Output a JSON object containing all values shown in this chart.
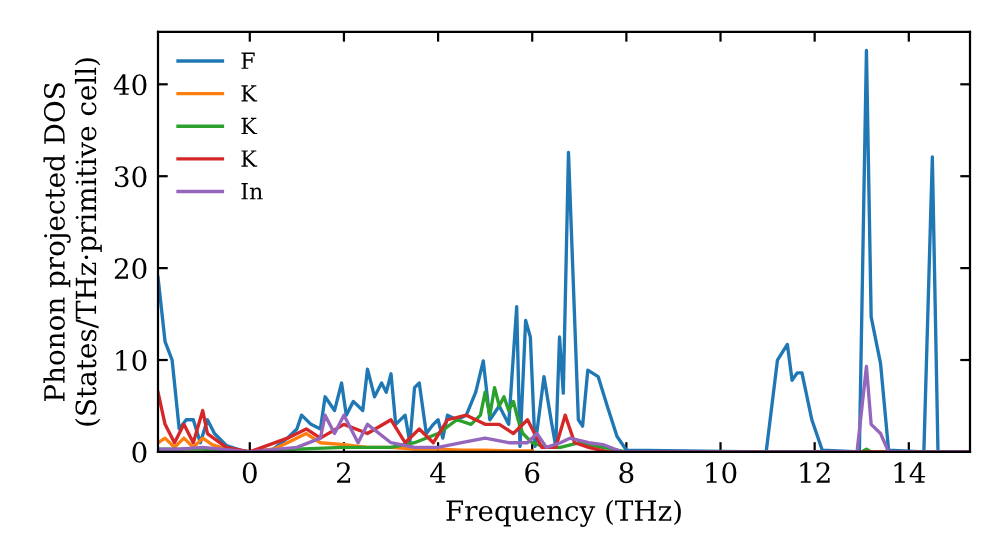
{
  "chart_data": {
    "type": "line",
    "xlabel": "Frequency (THz)",
    "ylabel": "Phonon projected DOS\n(States/THz·primitive cell)",
    "xlim": [
      -1.95,
      15.3
    ],
    "ylim": [
      0,
      45.7
    ],
    "xticks": [
      0,
      2,
      4,
      6,
      8,
      10,
      12,
      14
    ],
    "yticks": [
      0,
      10,
      20,
      30,
      40
    ],
    "legend": "top left",
    "grid": false,
    "marker": "none",
    "line_style": "solid",
    "series": [
      {
        "name": "F",
        "color": "#1f77b4",
        "x": [
          -1.95,
          -1.8,
          -1.65,
          -1.5,
          -1.35,
          -1.2,
          -1.05,
          -0.9,
          -0.75,
          -0.5,
          -0.2,
          0,
          0.5,
          0.8,
          1.0,
          1.1,
          1.3,
          1.5,
          1.6,
          1.8,
          1.95,
          2.05,
          2.2,
          2.4,
          2.5,
          2.65,
          2.8,
          2.9,
          3.0,
          3.1,
          3.3,
          3.4,
          3.5,
          3.6,
          3.75,
          3.9,
          4.0,
          4.1,
          4.2,
          4.4,
          4.6,
          4.8,
          4.96,
          5.1,
          5.3,
          5.5,
          5.67,
          5.74,
          5.86,
          5.96,
          6.06,
          6.25,
          6.4,
          6.5,
          6.58,
          6.66,
          6.77,
          6.98,
          7.07,
          7.18,
          7.4,
          7.6,
          7.8,
          8.0,
          10.97,
          11.21,
          11.42,
          11.52,
          11.63,
          11.73,
          11.94,
          12.16,
          12.95,
          13.1,
          13.2,
          13.4,
          13.57,
          14.32,
          14.5,
          14.62,
          15.3
        ],
        "values": [
          19,
          12,
          10,
          2.5,
          3.5,
          3.5,
          1,
          3.5,
          2,
          0.7,
          0.2,
          0,
          0.3,
          1.5,
          2.5,
          4,
          3,
          2.5,
          6,
          4.5,
          7.5,
          4,
          5.5,
          4.5,
          9,
          6,
          7.5,
          6.5,
          8.5,
          3,
          4,
          1,
          7,
          7.5,
          2,
          3,
          3.5,
          1.5,
          4,
          3.5,
          4,
          6.5,
          9.9,
          3.5,
          5,
          3,
          15.8,
          0.6,
          14.3,
          12.5,
          0.6,
          8.2,
          3.5,
          0.6,
          12.5,
          6.4,
          32.6,
          3.5,
          2.8,
          8.9,
          8.2,
          4.9,
          1.7,
          0.2,
          0,
          10,
          11.7,
          7.8,
          8.6,
          8.6,
          3.5,
          0.2,
          0,
          43.7,
          14.7,
          9.6,
          0.2,
          0,
          32.1,
          0,
          0
        ]
      },
      {
        "name": "K",
        "color": "#ff7f0e",
        "x": [
          -1.95,
          -1.8,
          -1.6,
          -1.4,
          -1.2,
          -1.0,
          -0.8,
          -0.5,
          0,
          0.5,
          0.8,
          1.2,
          1.5,
          2.0,
          2.5,
          3.0,
          3.5,
          4.0,
          4.5,
          5.0,
          5.5,
          6.0
        ],
        "values": [
          1,
          1.5,
          0.5,
          1.5,
          0.5,
          1.5,
          0.8,
          0.3,
          0,
          0.3,
          1,
          2,
          1,
          0.8,
          0.5,
          0.5,
          0.3,
          0.3,
          0.2,
          0.2,
          0.1,
          0.1
        ]
      },
      {
        "name": "K",
        "color": "#2ca02c",
        "x": [
          -1.95,
          -1.5,
          -1.0,
          0,
          1.0,
          2.0,
          3.0,
          3.5,
          4.0,
          4.4,
          4.7,
          4.9,
          5.0,
          5.1,
          5.2,
          5.3,
          5.4,
          5.5,
          5.6,
          5.7,
          5.8,
          6.0,
          6.3,
          6.6,
          7.0,
          7.5,
          8.0,
          13.0,
          13.1,
          13.2,
          15.3
        ],
        "values": [
          0.3,
          0.3,
          0.3,
          0,
          0.3,
          0.5,
          0.5,
          1,
          2,
          3.5,
          3,
          4,
          6.5,
          4,
          7,
          5,
          6,
          4.5,
          5.5,
          3.5,
          2,
          1,
          0.5,
          0.5,
          1,
          0.5,
          0,
          0,
          0.3,
          0,
          0
        ]
      },
      {
        "name": "K",
        "color": "#d62728",
        "x": [
          -1.95,
          -1.8,
          -1.6,
          -1.4,
          -1.2,
          -1.0,
          -0.9,
          -0.5,
          0,
          0.8,
          1.2,
          1.5,
          2.0,
          2.5,
          3.0,
          3.3,
          3.6,
          3.9,
          4.2,
          4.6,
          5.0,
          5.3,
          5.6,
          5.9,
          6.2,
          6.5,
          6.7,
          6.9,
          7.2,
          7.6,
          15.3
        ],
        "values": [
          6.5,
          3,
          1,
          3,
          1,
          4.5,
          2,
          0.5,
          0,
          1.5,
          2.5,
          1.5,
          3,
          2,
          3.5,
          1,
          2.5,
          1,
          3.5,
          4,
          3,
          3,
          2,
          3.5,
          0.5,
          0.5,
          4,
          1,
          0.5,
          0,
          0
        ]
      },
      {
        "name": "In",
        "color": "#9467bd",
        "x": [
          -1.95,
          -1.5,
          -1.0,
          0,
          1.0,
          1.5,
          1.6,
          1.8,
          2.0,
          2.3,
          2.5,
          3.0,
          3.5,
          4.0,
          4.5,
          5.0,
          5.5,
          5.9,
          6.1,
          6.3,
          6.6,
          6.8,
          7.2,
          7.5,
          7.9,
          12.9,
          13.1,
          13.2,
          13.4,
          13.57,
          15.3
        ],
        "values": [
          0.3,
          0.3,
          0.5,
          0,
          0.5,
          1.5,
          4,
          2,
          4,
          1,
          3,
          1,
          0.5,
          0.5,
          1,
          1.5,
          1,
          1,
          2,
          0.5,
          1,
          1.5,
          1,
          0.8,
          0,
          0,
          9.3,
          3,
          2,
          0,
          0
        ]
      }
    ]
  }
}
